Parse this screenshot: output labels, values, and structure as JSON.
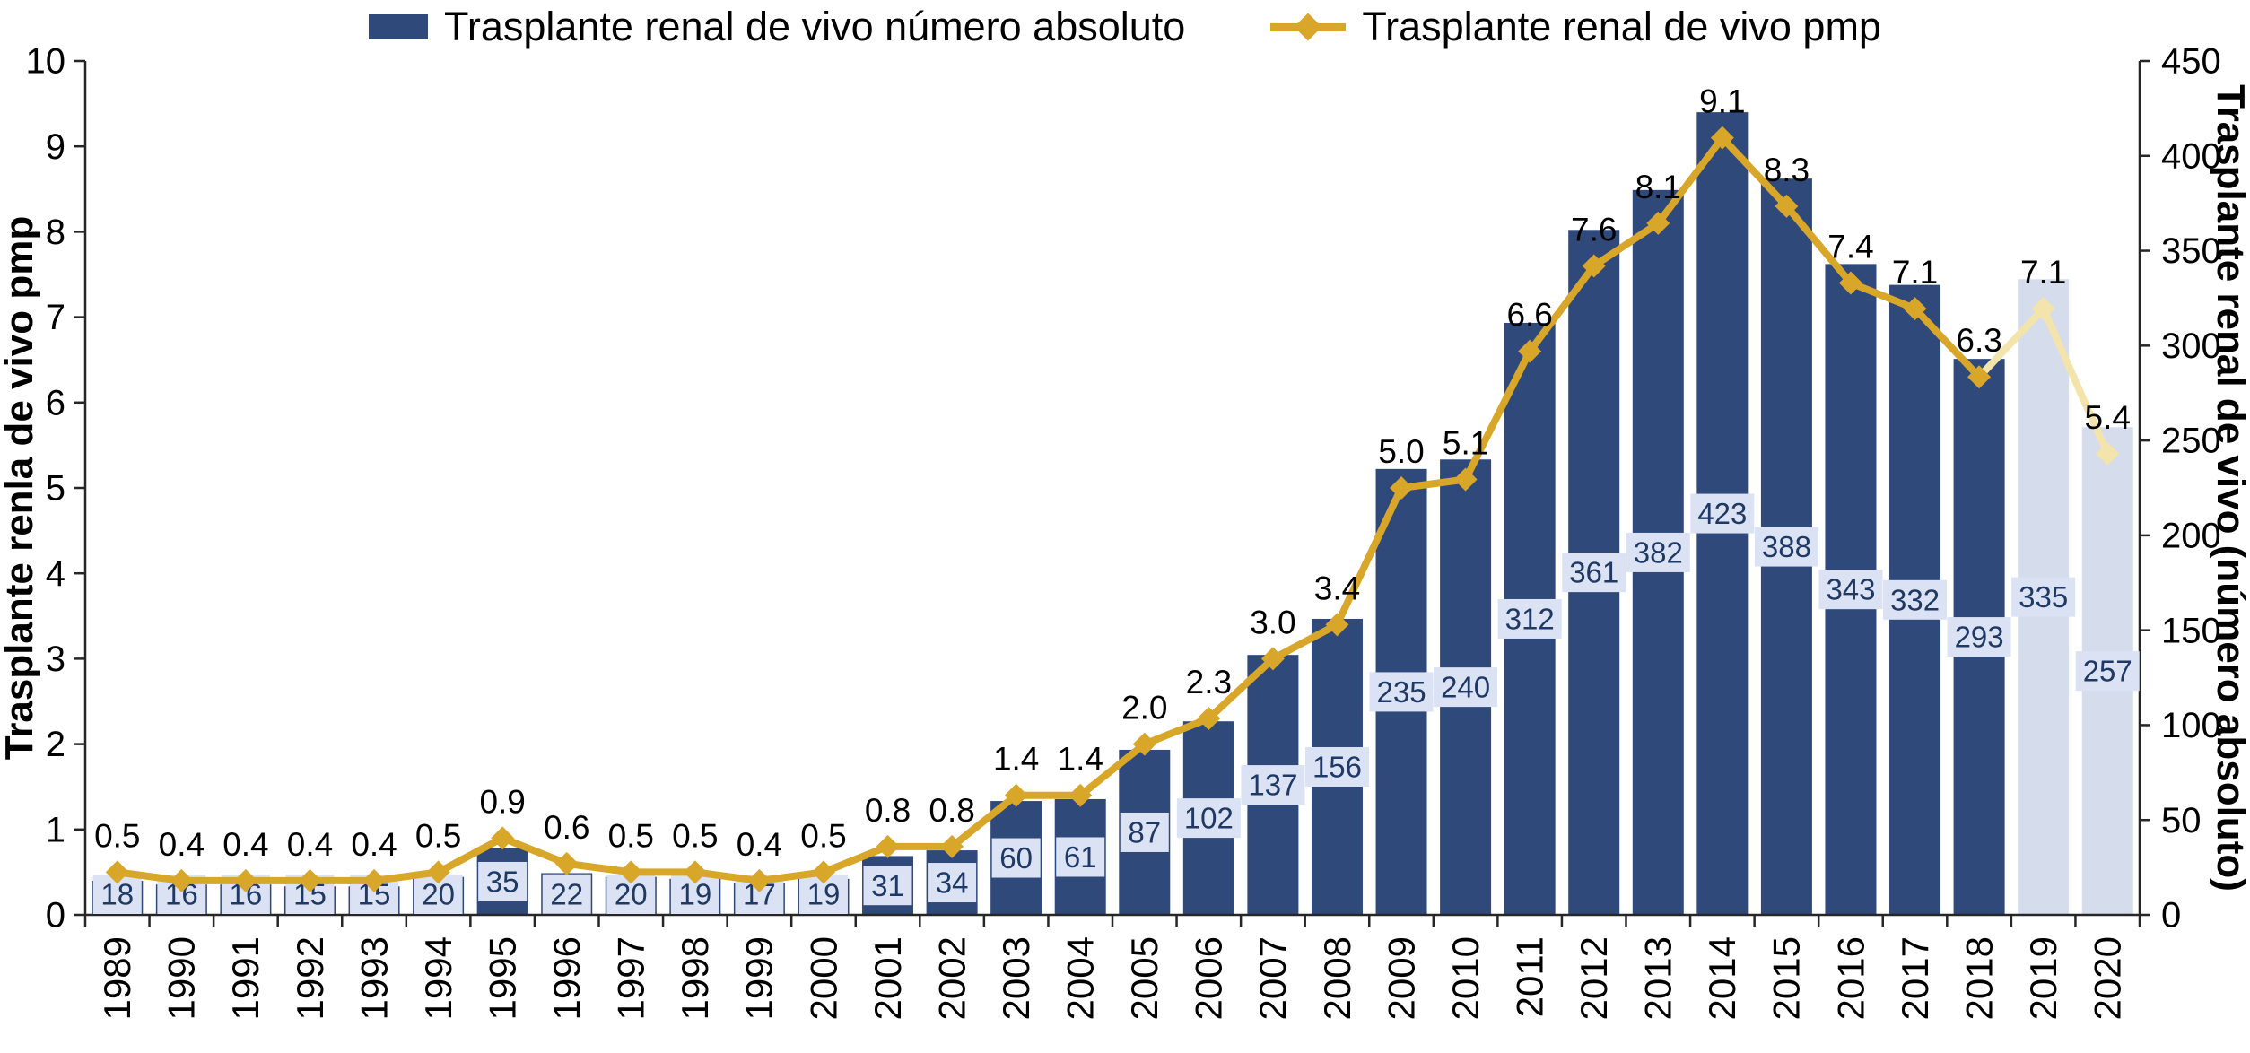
{
  "legend": {
    "bars_label": "Trasplante renal de vivo número absoluto",
    "line_label": "Trasplante renal de vivo pmp"
  },
  "axes": {
    "left_title": "Trasplante renla de vivo pmp",
    "right_title": "Trasplante renal de vivo (número absoluto)"
  },
  "chart_data": {
    "type": "combo-bar-line",
    "title": "",
    "grid": false,
    "legend_position": "top",
    "categories": [
      1989,
      1990,
      1991,
      1992,
      1993,
      1994,
      1995,
      1996,
      1997,
      1998,
      1999,
      2000,
      2001,
      2002,
      2003,
      2004,
      2005,
      2006,
      2007,
      2008,
      2009,
      2010,
      2011,
      2012,
      2013,
      2014,
      2015,
      2016,
      2017,
      2018,
      2019,
      2020
    ],
    "series": [
      {
        "name": "Trasplante renal de vivo número absoluto",
        "type": "bar",
        "axis": "right",
        "values": [
          18,
          16,
          16,
          15,
          15,
          20,
          35,
          22,
          20,
          19,
          17,
          19,
          31,
          34,
          60,
          61,
          87,
          102,
          137,
          156,
          235,
          240,
          312,
          361,
          382,
          423,
          388,
          343,
          332,
          293,
          335,
          257
        ]
      },
      {
        "name": "Trasplante renal de vivo pmp",
        "type": "line",
        "axis": "left",
        "values": [
          0.5,
          0.4,
          0.4,
          0.4,
          0.4,
          0.5,
          0.9,
          0.6,
          0.5,
          0.5,
          0.4,
          0.5,
          0.8,
          0.8,
          1.4,
          1.4,
          2.0,
          2.3,
          3.0,
          3.4,
          5.0,
          5.1,
          6.6,
          7.6,
          8.1,
          9.1,
          8.3,
          7.4,
          7.1,
          6.3,
          7.1,
          5.4
        ]
      }
    ],
    "highlight_years": [
      2019,
      2020
    ],
    "left_axis": {
      "title": "Trasplante renla de vivo pmp",
      "min": 0,
      "max": 10,
      "step": 1
    },
    "right_axis": {
      "title": "Trasplante renal de vivo (número absoluto)",
      "min": 0,
      "max": 450,
      "step": 50
    },
    "colors": {
      "bar": "#30497B",
      "bar_highlight": "#D5DCEC",
      "line": "#D8A628",
      "line_highlight": "#F2E4AA",
      "bar_label_box": "#DAE2F3",
      "bar_label_text": "#1F3864",
      "point_label_text": "#000000",
      "axis": "#262626"
    }
  }
}
